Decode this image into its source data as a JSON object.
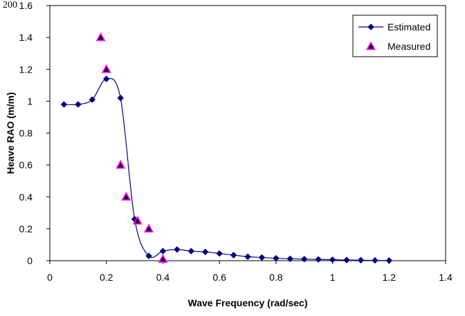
{
  "corner_fragment": ", 200",
  "chart_data": {
    "type": "line",
    "title": "",
    "xlabel": "Wave Frequency (rad/sec)",
    "ylabel": "Heave RAO (m/m)",
    "xlim": [
      0,
      1.4
    ],
    "ylim": [
      0,
      1.6
    ],
    "x_ticks": [
      "0",
      "0.2",
      "0.4",
      "0.6",
      "0.8",
      "1",
      "1.2",
      "1.4"
    ],
    "y_ticks": [
      "0",
      "0.2",
      "0.4",
      "0.6",
      "0.8",
      "1",
      "1.2",
      "1.4",
      "1.6"
    ],
    "grid": false,
    "legend_position": "top-right",
    "series": [
      {
        "name": "Estimated",
        "kind": "line-with-diamond-markers",
        "color": "#000080",
        "points": [
          [
            0.05,
            0.98
          ],
          [
            0.1,
            0.98
          ],
          [
            0.15,
            1.01
          ],
          [
            0.2,
            1.14
          ],
          [
            0.25,
            1.02
          ],
          [
            0.3,
            0.26
          ],
          [
            0.35,
            0.03
          ],
          [
            0.4,
            0.06
          ],
          [
            0.45,
            0.07
          ],
          [
            0.5,
            0.06
          ],
          [
            0.55,
            0.055
          ],
          [
            0.6,
            0.045
          ],
          [
            0.65,
            0.035
          ],
          [
            0.7,
            0.025
          ],
          [
            0.75,
            0.02
          ],
          [
            0.8,
            0.015
          ],
          [
            0.85,
            0.012
          ],
          [
            0.9,
            0.01
          ],
          [
            0.95,
            0.008
          ],
          [
            1.0,
            0.006
          ],
          [
            1.05,
            0.004
          ],
          [
            1.1,
            0.003
          ],
          [
            1.15,
            0.002
          ],
          [
            1.2,
            0.001
          ]
        ]
      },
      {
        "name": "Measured",
        "kind": "triangle-markers",
        "color": "#ff00ff",
        "points": [
          [
            0.18,
            1.4
          ],
          [
            0.2,
            1.2
          ],
          [
            0.25,
            0.6
          ],
          [
            0.27,
            0.4
          ],
          [
            0.31,
            0.25
          ],
          [
            0.35,
            0.2
          ],
          [
            0.4,
            0.01
          ]
        ]
      }
    ]
  }
}
